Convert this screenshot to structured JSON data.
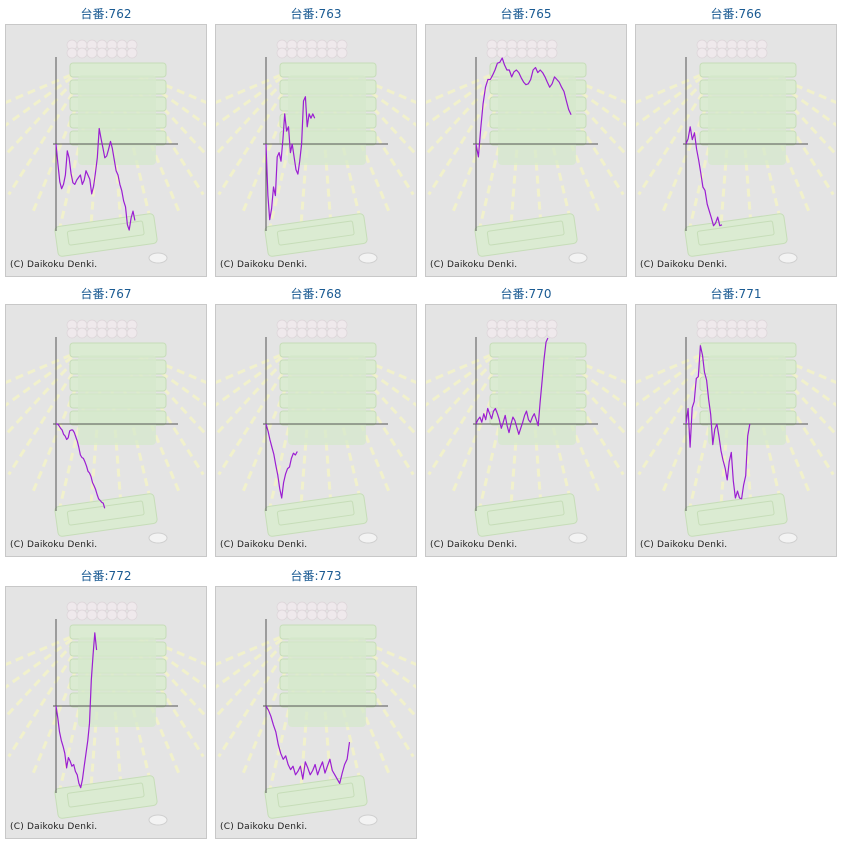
{
  "copyright": "(C) Daikoku Denki.",
  "colors": {
    "line": "#9b1ed2",
    "axis": "#555555",
    "title": "#1a5a92",
    "panel_bg": "#e4e4e4"
  },
  "chart_data": [
    {
      "type": "line",
      "title": "台番:762",
      "y_baseline": 0,
      "series": [
        {
          "values": [
            0,
            -0.23,
            -0.44,
            -0.52,
            -0.47,
            -0.36,
            -0.08,
            -0.16,
            -0.34,
            -0.45,
            -0.47,
            -0.42,
            -0.39,
            -0.36,
            -0.47,
            -0.42,
            -0.31,
            -0.36,
            -0.41,
            -0.58,
            -0.49,
            -0.34,
            -0.16,
            0.18,
            0.06,
            -0.05,
            -0.16,
            -0.14,
            -0.06,
            0.03,
            -0.05,
            -0.18,
            -0.31,
            -0.36,
            -0.47,
            -0.54,
            -0.66,
            -0.73,
            -0.94,
            -1.0,
            -0.86,
            -0.78,
            -0.89
          ]
        }
      ]
    },
    {
      "type": "line",
      "title": "台番:763",
      "y_baseline": 0,
      "series": [
        {
          "values": [
            0,
            -0.6,
            -0.88,
            -0.75,
            -0.5,
            -0.6,
            -0.15,
            -0.1,
            -0.2,
            0.05,
            0.35,
            0.15,
            0.2,
            -0.1,
            0.0,
            -0.15,
            -0.3,
            -0.35,
            -0.2,
            0.0,
            0.5,
            0.55,
            0.2,
            0.35,
            0.3,
            0.35,
            0.3
          ]
        }
      ]
    },
    {
      "type": "line",
      "title": "台番:765",
      "y_baseline": 0,
      "series": [
        {
          "values": [
            0,
            -0.15,
            0.19,
            0.47,
            0.66,
            0.75,
            0.75,
            0.8,
            0.86,
            0.94,
            0.95,
            1.0,
            0.92,
            0.86,
            0.86,
            0.78,
            0.84,
            0.86,
            0.83,
            0.77,
            0.72,
            0.69,
            0.7,
            0.75,
            0.86,
            0.89,
            0.83,
            0.86,
            0.83,
            0.78,
            0.72,
            0.66,
            0.7,
            0.78,
            0.75,
            0.72,
            0.66,
            0.61,
            0.5,
            0.4,
            0.34
          ]
        }
      ]
    },
    {
      "type": "line",
      "title": "台番:766",
      "y_baseline": 0,
      "series": [
        {
          "values": [
            0,
            0.06,
            0.2,
            0.05,
            0.13,
            -0.06,
            -0.19,
            -0.34,
            -0.5,
            -0.54,
            -0.7,
            -0.78,
            -0.86,
            -0.95,
            -0.92,
            -0.85,
            -0.95,
            -0.94
          ]
        }
      ]
    },
    {
      "type": "line",
      "title": "台番:767",
      "y_baseline": 0,
      "series": [
        {
          "values": [
            0,
            0.0,
            -0.02,
            -0.05,
            -0.07,
            -0.12,
            -0.14,
            -0.18,
            -0.16,
            -0.08,
            -0.07,
            -0.07,
            -0.1,
            -0.15,
            -0.2,
            -0.27,
            -0.36,
            -0.39,
            -0.4,
            -0.44,
            -0.49,
            -0.55,
            -0.57,
            -0.61,
            -0.68,
            -0.72,
            -0.76,
            -0.82,
            -0.87,
            -0.89,
            -0.91,
            -0.92,
            -0.98
          ]
        }
      ]
    },
    {
      "type": "line",
      "title": "台番:768",
      "y_baseline": 0,
      "series": [
        {
          "values": [
            0,
            -0.08,
            -0.18,
            -0.27,
            -0.35,
            -0.48,
            -0.59,
            -0.75,
            -0.86,
            -0.68,
            -0.58,
            -0.52,
            -0.5,
            -0.4,
            -0.34,
            -0.36,
            -0.32
          ]
        }
      ]
    },
    {
      "type": "line",
      "title": "台番:770",
      "y_baseline": 0,
      "series": [
        {
          "values": [
            0,
            0.05,
            0.08,
            0.02,
            0.12,
            0.05,
            0.18,
            0.12,
            0.06,
            0.15,
            0.18,
            0.12,
            0.05,
            -0.05,
            0.02,
            0.1,
            -0.02,
            -0.1,
            0.0,
            0.08,
            0.04,
            -0.04,
            -0.12,
            -0.05,
            0.02,
            0.1,
            0.15,
            0.05,
            0.02,
            0.08,
            0.12,
            0.05,
            -0.02,
            0.25,
            0.5,
            0.75,
            0.95,
            1.0
          ]
        }
      ]
    },
    {
      "type": "line",
      "title": "台番:771",
      "y_baseline": 0,
      "series": [
        {
          "values": [
            0,
            0.18,
            -0.27,
            0.19,
            0.26,
            0.53,
            0.55,
            0.91,
            0.8,
            0.6,
            0.51,
            0.29,
            0.11,
            -0.24,
            -0.06,
            0.0,
            -0.14,
            -0.31,
            -0.42,
            -0.51,
            -0.65,
            -0.44,
            -0.33,
            -0.66,
            -0.86,
            -0.78,
            -0.86,
            -0.87,
            -0.71,
            -0.6,
            -0.14,
            0.0
          ]
        }
      ]
    },
    {
      "type": "line",
      "title": "台番:772",
      "y_baseline": 0,
      "series": [
        {
          "values": [
            0,
            -0.14,
            -0.3,
            -0.4,
            -0.47,
            -0.55,
            -0.72,
            -0.6,
            -0.64,
            -0.7,
            -0.68,
            -0.76,
            -0.8,
            -0.9,
            -0.95,
            -0.85,
            -0.7,
            -0.55,
            -0.4,
            -0.2,
            0.3,
            0.6,
            0.85,
            0.65
          ]
        }
      ]
    },
    {
      "type": "line",
      "title": "台番:773",
      "y_baseline": 0,
      "series": [
        {
          "values": [
            0,
            -0.05,
            -0.12,
            -0.22,
            -0.3,
            -0.45,
            -0.55,
            -0.62,
            -0.58,
            -0.68,
            -0.74,
            -0.7,
            -0.8,
            -0.76,
            -0.7,
            -0.85,
            -0.65,
            -0.72,
            -0.8,
            -0.75,
            -0.68,
            -0.8,
            -0.72,
            -0.65,
            -0.78,
            -0.7,
            -0.62,
            -0.75,
            -0.8,
            -0.85,
            -0.9,
            -0.78,
            -0.68,
            -0.62,
            -0.42
          ]
        }
      ]
    }
  ]
}
